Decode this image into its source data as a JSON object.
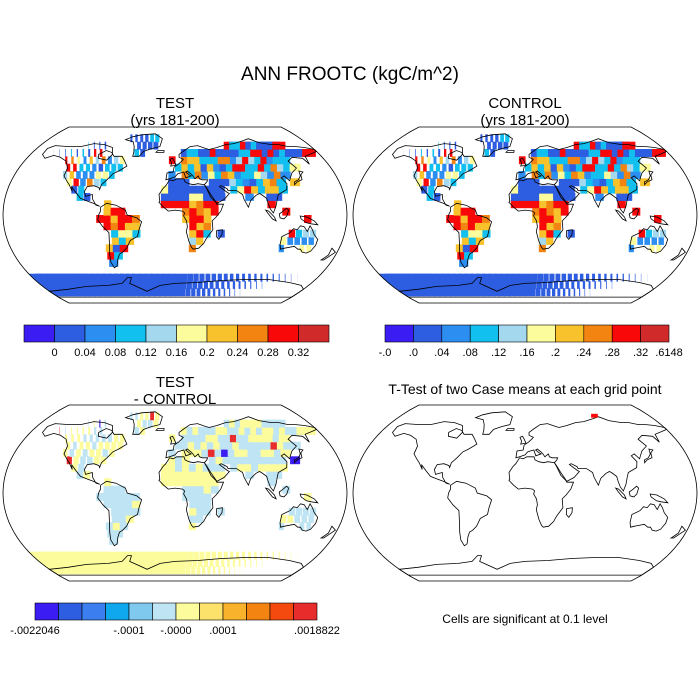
{
  "title": "ANN FROOTC (kgC/m^2)",
  "panels": {
    "test": {
      "title": "TEST",
      "subtitle": "(yrs 181-200)"
    },
    "control": {
      "title": "CONTROL",
      "subtitle": "(yrs 181-200)"
    },
    "diff": {
      "title": "TEST",
      "subtitle": "- CONTROL"
    },
    "ttest": {
      "title": "T-Test of two Case means at each grid point",
      "note": "Cells are significant at 0.1 level"
    }
  },
  "colorbars": {
    "test": {
      "colors": [
        "#3b1cf2",
        "#2d5de0",
        "#2c8ef0",
        "#12c0f0",
        "#a4d8ef",
        "#fcfc9c",
        "#f8c22c",
        "#f48412",
        "#f80808",
        "#d02a2a"
      ],
      "labels": [
        "0",
        "0.04",
        "0.08",
        "0.12",
        "0.16",
        "0.2",
        "0.24",
        "0.28",
        "0.32"
      ]
    },
    "control": {
      "colors": [
        "#3b1cf2",
        "#2d5de0",
        "#2c8ef0",
        "#12c0f0",
        "#a4d8ef",
        "#fcfc9c",
        "#f8c22c",
        "#f48412",
        "#f80808",
        "#d02a2a"
      ],
      "labels": [
        "-.0",
        ".0",
        ".04",
        ".08",
        ".12",
        ".16",
        ".2",
        ".24",
        ".28",
        ".32",
        ".6148"
      ]
    },
    "diff": {
      "colors": [
        "#3b1cf2",
        "#2d5de0",
        "#3a7ef0",
        "#0fa8ee",
        "#7fc9ee",
        "#bfe4f4",
        "#fcfc9c",
        "#fce26a",
        "#f8b22c",
        "#f48412",
        "#f44a10",
        "#e82c2c"
      ],
      "labels": [
        "-.0022046",
        "-.0001",
        "-.0000",
        ".0001",
        ".0018822"
      ]
    }
  }
}
